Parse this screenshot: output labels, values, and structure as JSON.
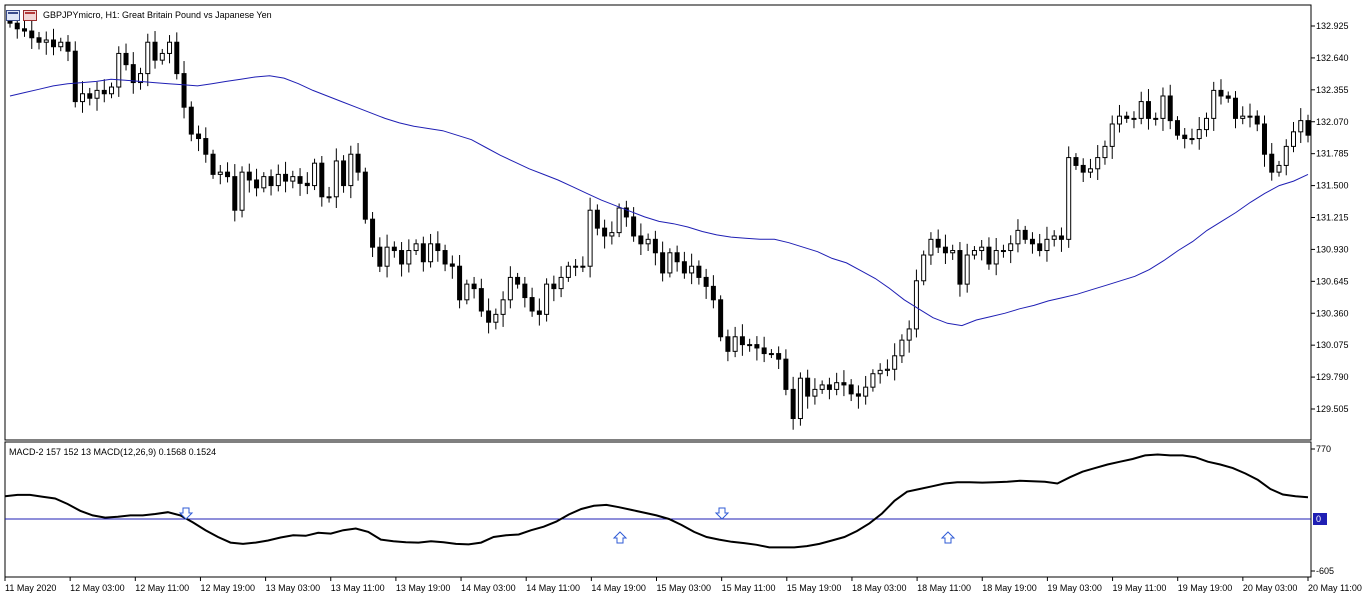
{
  "window": {
    "title": "GBPJPYmicro, H1:  Great Britain Pound vs Japanese Yen",
    "icons": [
      "chart-window-icon",
      "symbol-flag-icon"
    ]
  },
  "colors": {
    "background": "#ffffff",
    "frame": "#000000",
    "ma_line": "#1f1fb4",
    "macd_line": "#000000",
    "zero_line": "#1f1fb4",
    "arrow": "#2f5bd6",
    "zero_badge": "#1f1fb4"
  },
  "chart_data": [
    {
      "type": "candlestick",
      "title": "GBPJPYmicro, H1:  Great Britain Pound vs Japanese Yen",
      "ylim": [
        129.3,
        133.1
      ],
      "y_ticks": [
        "132.925",
        "132.640",
        "132.355",
        "132.070",
        "131.785",
        "131.500",
        "131.215",
        "130.930",
        "130.645",
        "130.360",
        "130.075",
        "129.790",
        "129.505"
      ],
      "x_ticks": [
        "11 May 2020",
        "12 May 03:00",
        "12 May 11:00",
        "12 May 19:00",
        "13 May 03:00",
        "13 May 11:00",
        "13 May 19:00",
        "14 May 03:00",
        "14 May 11:00",
        "14 May 19:00",
        "15 May 03:00",
        "15 May 11:00",
        "15 May 19:00",
        "18 May 03:00",
        "18 May 11:00",
        "18 May 19:00",
        "19 May 03:00",
        "19 May 11:00",
        "19 May 19:00",
        "20 May 03:00",
        "20 May 11:00"
      ],
      "close": [
        132.95,
        132.9,
        132.88,
        132.82,
        132.78,
        132.8,
        132.74,
        132.78,
        132.7,
        132.25,
        132.32,
        132.28,
        132.35,
        132.32,
        132.38,
        132.68,
        132.58,
        132.42,
        132.5,
        132.78,
        132.62,
        132.68,
        132.78,
        132.5,
        132.2,
        131.96,
        131.92,
        131.78,
        131.6,
        131.62,
        131.58,
        131.28,
        131.62,
        131.55,
        131.48,
        131.58,
        131.5,
        131.6,
        131.54,
        131.58,
        131.52,
        131.5,
        131.7,
        131.4,
        131.4,
        131.72,
        131.5,
        131.78,
        131.62,
        131.2,
        130.95,
        130.78,
        130.95,
        130.92,
        130.8,
        130.92,
        130.98,
        130.82,
        130.98,
        130.92,
        130.8,
        130.78,
        130.48,
        130.62,
        130.58,
        130.38,
        130.28,
        130.35,
        130.48,
        130.68,
        130.62,
        130.5,
        130.38,
        130.35,
        130.62,
        130.58,
        130.68,
        130.78,
        130.78,
        130.78,
        131.28,
        131.12,
        131.05,
        131.08,
        131.3,
        131.22,
        131.05,
        130.98,
        131.02,
        130.9,
        130.72,
        130.9,
        130.82,
        130.72,
        130.78,
        130.68,
        130.6,
        130.48,
        130.15,
        130.02,
        130.15,
        130.08,
        130.08,
        130.05,
        130.0,
        130.0,
        129.95,
        129.68,
        129.42,
        129.78,
        129.62,
        129.68,
        129.72,
        129.68,
        129.74,
        129.72,
        129.64,
        129.62,
        129.7,
        129.82,
        129.85,
        129.86,
        129.98,
        130.12,
        130.22,
        130.65,
        130.88,
        131.02,
        130.95,
        130.9,
        130.92,
        130.62,
        130.88,
        130.92,
        130.95,
        130.8,
        130.92,
        130.92,
        130.98,
        131.1,
        131.02,
        130.98,
        130.92,
        131.02,
        131.05,
        131.02,
        131.75,
        131.68,
        131.62,
        131.65,
        131.75,
        131.85,
        132.05,
        132.12,
        132.1,
        132.1,
        132.25,
        132.1,
        132.1,
        132.3,
        132.08,
        131.95,
        131.92,
        131.92,
        132.0,
        132.1,
        132.35,
        132.3,
        132.28,
        132.1,
        132.12,
        132.12,
        132.05,
        131.78,
        131.62,
        131.68,
        131.85,
        131.98,
        132.08,
        131.95
      ],
      "ma_line": [
        132.3,
        132.33,
        132.36,
        132.39,
        132.41,
        132.42,
        132.43,
        132.45,
        132.44,
        132.43,
        132.42,
        132.41,
        132.4,
        132.39,
        132.41,
        132.43,
        132.45,
        132.47,
        132.48,
        132.46,
        132.41,
        132.35,
        132.3,
        132.25,
        132.2,
        132.15,
        132.1,
        132.06,
        132.03,
        132.01,
        131.99,
        131.95,
        131.91,
        131.84,
        131.77,
        131.71,
        131.65,
        131.6,
        131.55,
        131.49,
        131.43,
        131.37,
        131.32,
        131.27,
        131.22,
        131.18,
        131.16,
        131.13,
        131.09,
        131.06,
        131.04,
        131.03,
        131.02,
        131.02,
        130.99,
        130.95,
        130.91,
        130.85,
        130.81,
        130.74,
        130.67,
        130.58,
        130.48,
        130.4,
        130.32,
        130.27,
        130.25,
        130.3,
        130.33,
        130.36,
        130.4,
        130.43,
        130.47,
        130.5,
        130.53,
        130.57,
        130.61,
        130.65,
        130.69,
        130.75,
        130.83,
        130.92,
        131.0,
        131.1,
        131.18,
        131.26,
        131.35,
        131.43,
        131.5,
        131.54,
        131.6
      ],
      "series": [
        {
          "name": "MA",
          "values": []
        }
      ]
    },
    {
      "type": "line",
      "title": "MACD-2 157 152 13 MACD(12,26,9) 0.1568 0.1524",
      "ylim": [
        -605,
        770
      ],
      "y_ticks": [
        "770",
        "0",
        "-605"
      ],
      "values": [
        250,
        265,
        265,
        245,
        225,
        165,
        90,
        40,
        15,
        25,
        40,
        40,
        55,
        75,
        40,
        -40,
        -130,
        -210,
        -275,
        -290,
        -275,
        -250,
        -215,
        -190,
        -195,
        -160,
        -170,
        -130,
        -110,
        -150,
        -240,
        -260,
        -270,
        -275,
        -260,
        -270,
        -290,
        -295,
        -275,
        -210,
        -190,
        -180,
        -130,
        -90,
        -30,
        50,
        110,
        145,
        155,
        130,
        100,
        70,
        40,
        0,
        -70,
        -150,
        -210,
        -240,
        -265,
        -280,
        -300,
        -330,
        -330,
        -330,
        -315,
        -290,
        -250,
        -210,
        -140,
        -50,
        60,
        200,
        300,
        330,
        360,
        390,
        405,
        405,
        400,
        405,
        410,
        420,
        415,
        410,
        390,
        460,
        520,
        560,
        600,
        630,
        660,
        700,
        710,
        700,
        700,
        680,
        630,
        600,
        560,
        500,
        430,
        330,
        270,
        250,
        240
      ],
      "signal_arrows": [
        {
          "direction": "down"
        },
        {
          "direction": "up"
        },
        {
          "direction": "down"
        },
        {
          "direction": "up"
        }
      ]
    }
  ]
}
